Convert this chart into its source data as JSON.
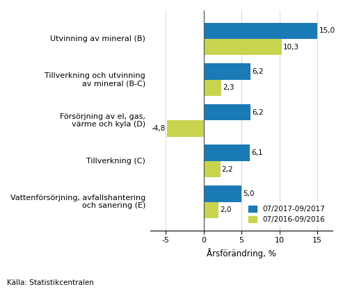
{
  "categories": [
    "Utvinning av mineral (B)",
    "Tillverkning och utvinning\nav mineral (B-C)",
    "Försörjning av el, gas,\nvärme och kyla (D)",
    "Tillverkning (C)",
    "Vattenförsörjning, avfallshantering\noch sanering (E)"
  ],
  "series_2017": [
    15.0,
    6.2,
    6.2,
    6.1,
    5.0
  ],
  "series_2016": [
    10.3,
    2.3,
    -4.8,
    2.2,
    2.0
  ],
  "color_2017": "#1a7ab5",
  "color_2016": "#c8d44e",
  "xlabel": "Årsförändring, %",
  "legend_2017": "07/2017-09/2017",
  "legend_2016": "07/2016-09/2016",
  "source": "Källa: Statistikcentralen",
  "xlim": [
    -7,
    17
  ],
  "xticks": [
    -5,
    0,
    5,
    10,
    15
  ]
}
